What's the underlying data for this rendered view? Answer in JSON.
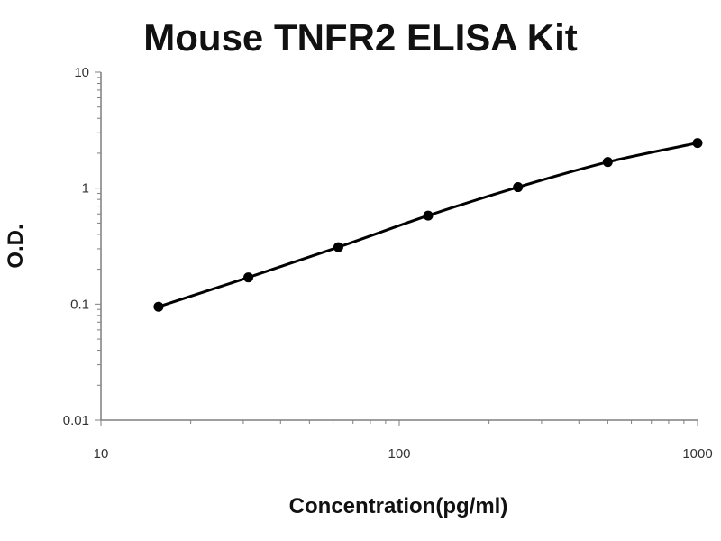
{
  "chart_data": {
    "type": "line",
    "title": "Mouse TNFR2 ELISA Kit",
    "xlabel": "Concentration(pg/ml)",
    "ylabel": "O.D.",
    "x_scale": "log",
    "y_scale": "log",
    "xlim": [
      10,
      1000
    ],
    "ylim": [
      0.01,
      10
    ],
    "x_ticks": [
      10,
      100,
      1000
    ],
    "x_tick_labels": [
      "10",
      "100",
      "1000"
    ],
    "y_ticks": [
      0.01,
      0.1,
      1,
      10
    ],
    "y_tick_labels": [
      "0.01",
      "0.1",
      "1",
      "10"
    ],
    "grid": false,
    "legend": "none",
    "series": [
      {
        "x": [
          15.6,
          31.2,
          62.5,
          125,
          250,
          500,
          1000
        ],
        "y": [
          0.095,
          0.17,
          0.31,
          0.58,
          1.02,
          1.68,
          2.45
        ],
        "color": "#000000",
        "marker": "circle"
      }
    ]
  }
}
